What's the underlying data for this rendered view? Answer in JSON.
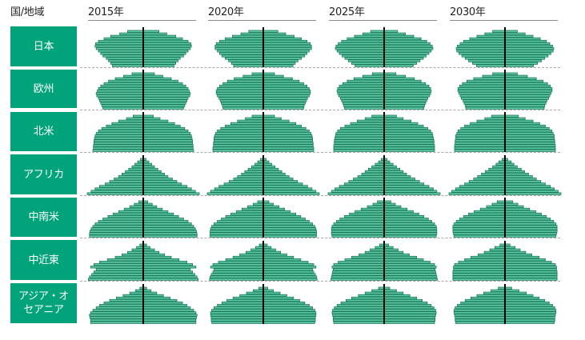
{
  "header": {
    "label": "国/地域"
  },
  "chart_data": {
    "type": "bar",
    "layout": "population pyramids",
    "years": [
      "2015年",
      "2020年",
      "2025年",
      "2030年"
    ],
    "regions": [
      {
        "name": "日本",
        "pyramids": [
          [
            0.28,
            0.42,
            0.58,
            0.7,
            0.8,
            0.85,
            0.86,
            0.84,
            0.8,
            0.76,
            0.72,
            0.66,
            0.62,
            0.58,
            0.55
          ],
          [
            0.26,
            0.4,
            0.55,
            0.68,
            0.78,
            0.84,
            0.86,
            0.86,
            0.82,
            0.78,
            0.74,
            0.68,
            0.62,
            0.57,
            0.53
          ],
          [
            0.24,
            0.38,
            0.53,
            0.66,
            0.76,
            0.82,
            0.86,
            0.87,
            0.84,
            0.8,
            0.75,
            0.7,
            0.64,
            0.58,
            0.52
          ],
          [
            0.22,
            0.36,
            0.5,
            0.63,
            0.74,
            0.8,
            0.85,
            0.87,
            0.86,
            0.82,
            0.77,
            0.71,
            0.65,
            0.58,
            0.51
          ]
        ]
      },
      {
        "name": "欧州",
        "pyramids": [
          [
            0.2,
            0.35,
            0.5,
            0.62,
            0.7,
            0.76,
            0.8,
            0.82,
            0.84,
            0.83,
            0.8,
            0.78,
            0.76,
            0.74,
            0.72
          ],
          [
            0.2,
            0.36,
            0.52,
            0.64,
            0.72,
            0.78,
            0.82,
            0.84,
            0.84,
            0.82,
            0.79,
            0.77,
            0.75,
            0.73,
            0.72
          ],
          [
            0.21,
            0.38,
            0.54,
            0.66,
            0.74,
            0.8,
            0.83,
            0.84,
            0.83,
            0.81,
            0.78,
            0.76,
            0.74,
            0.72,
            0.71
          ],
          [
            0.22,
            0.4,
            0.56,
            0.68,
            0.76,
            0.81,
            0.84,
            0.84,
            0.82,
            0.8,
            0.78,
            0.75,
            0.73,
            0.71,
            0.7
          ]
        ]
      },
      {
        "name": "北米",
        "pyramids": [
          [
            0.18,
            0.3,
            0.44,
            0.56,
            0.66,
            0.74,
            0.8,
            0.84,
            0.86,
            0.87,
            0.88,
            0.88,
            0.89,
            0.89,
            0.9
          ],
          [
            0.2,
            0.32,
            0.46,
            0.58,
            0.68,
            0.76,
            0.82,
            0.85,
            0.87,
            0.88,
            0.88,
            0.89,
            0.89,
            0.9,
            0.9
          ],
          [
            0.22,
            0.34,
            0.48,
            0.6,
            0.7,
            0.78,
            0.83,
            0.86,
            0.87,
            0.88,
            0.89,
            0.89,
            0.9,
            0.9,
            0.9
          ],
          [
            0.24,
            0.36,
            0.5,
            0.62,
            0.72,
            0.79,
            0.84,
            0.86,
            0.88,
            0.88,
            0.89,
            0.89,
            0.9,
            0.9,
            0.9
          ]
        ]
      },
      {
        "name": "アフリカ",
        "pyramids": [
          [
            0.05,
            0.1,
            0.15,
            0.2,
            0.26,
            0.32,
            0.38,
            0.44,
            0.52,
            0.6,
            0.68,
            0.78,
            0.86,
            0.93,
            1.0
          ],
          [
            0.05,
            0.1,
            0.15,
            0.21,
            0.27,
            0.33,
            0.39,
            0.46,
            0.53,
            0.61,
            0.7,
            0.79,
            0.87,
            0.94,
            1.0
          ],
          [
            0.05,
            0.1,
            0.16,
            0.22,
            0.28,
            0.34,
            0.4,
            0.47,
            0.55,
            0.63,
            0.71,
            0.8,
            0.88,
            0.94,
            1.0
          ],
          [
            0.05,
            0.11,
            0.16,
            0.22,
            0.29,
            0.35,
            0.42,
            0.49,
            0.56,
            0.64,
            0.72,
            0.81,
            0.88,
            0.95,
            1.0
          ]
        ]
      },
      {
        "name": "中南米",
        "pyramids": [
          [
            0.08,
            0.16,
            0.24,
            0.34,
            0.44,
            0.54,
            0.63,
            0.72,
            0.8,
            0.86,
            0.9,
            0.93,
            0.95,
            0.96,
            0.96
          ],
          [
            0.1,
            0.18,
            0.28,
            0.38,
            0.48,
            0.58,
            0.67,
            0.75,
            0.82,
            0.88,
            0.92,
            0.94,
            0.95,
            0.95,
            0.95
          ],
          [
            0.12,
            0.2,
            0.3,
            0.41,
            0.52,
            0.62,
            0.71,
            0.79,
            0.85,
            0.9,
            0.93,
            0.94,
            0.94,
            0.94,
            0.93
          ],
          [
            0.14,
            0.23,
            0.33,
            0.44,
            0.55,
            0.65,
            0.74,
            0.81,
            0.87,
            0.91,
            0.93,
            0.93,
            0.93,
            0.92,
            0.91
          ]
        ]
      },
      {
        "name": "中近東",
        "pyramids": [
          [
            0.06,
            0.12,
            0.2,
            0.28,
            0.38,
            0.5,
            0.64,
            0.78,
            0.88,
            0.94,
            0.84,
            0.88,
            0.92,
            0.96,
            0.98
          ],
          [
            0.07,
            0.14,
            0.22,
            0.31,
            0.42,
            0.54,
            0.67,
            0.8,
            0.9,
            0.94,
            0.88,
            0.9,
            0.93,
            0.95,
            0.96
          ],
          [
            0.08,
            0.16,
            0.25,
            0.34,
            0.45,
            0.58,
            0.7,
            0.82,
            0.9,
            0.93,
            0.91,
            0.92,
            0.93,
            0.94,
            0.95
          ],
          [
            0.09,
            0.18,
            0.27,
            0.37,
            0.48,
            0.61,
            0.72,
            0.83,
            0.9,
            0.92,
            0.92,
            0.93,
            0.93,
            0.93,
            0.93
          ]
        ]
      },
      {
        "name": "アジア・オ\nセアニア",
        "pyramids": [
          [
            0.06,
            0.14,
            0.24,
            0.36,
            0.48,
            0.6,
            0.7,
            0.78,
            0.84,
            0.9,
            0.94,
            0.96,
            0.95,
            0.94,
            0.94
          ],
          [
            0.08,
            0.18,
            0.3,
            0.42,
            0.54,
            0.65,
            0.74,
            0.82,
            0.88,
            0.92,
            0.94,
            0.94,
            0.93,
            0.93,
            0.92
          ],
          [
            0.1,
            0.22,
            0.34,
            0.46,
            0.58,
            0.68,
            0.77,
            0.84,
            0.89,
            0.92,
            0.93,
            0.92,
            0.91,
            0.91,
            0.9
          ],
          [
            0.12,
            0.25,
            0.38,
            0.5,
            0.61,
            0.71,
            0.79,
            0.85,
            0.89,
            0.91,
            0.91,
            0.9,
            0.89,
            0.89,
            0.88
          ]
        ]
      }
    ],
    "colors": {
      "bar_fill": "#5cc7a3",
      "bar_stroke": "#1c7a5a",
      "region_bg": "#00a37a",
      "axis": "#000000"
    }
  }
}
